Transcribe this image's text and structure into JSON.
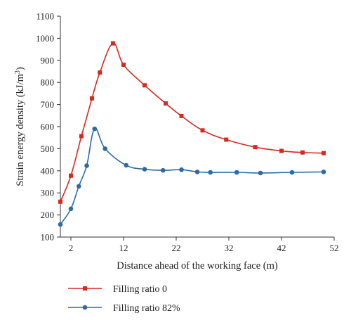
{
  "chart_data": {
    "type": "line",
    "xlabel": "Distance ahead of the working face (m)",
    "ylabel": "Strain energy density (kJ/m³)",
    "ylabel_parts": [
      "Strain energy density (kJ/m",
      "3",
      ")"
    ],
    "xlim": [
      0,
      52
    ],
    "ylim": [
      100,
      1100
    ],
    "xticks": [
      2,
      12,
      22,
      32,
      42,
      52
    ],
    "yticks": [
      100,
      200,
      300,
      400,
      500,
      600,
      700,
      800,
      900,
      1000,
      1100
    ],
    "grid": false,
    "legend_position": "bottom-left",
    "series": [
      {
        "name": "Filling ratio 0",
        "color": "#d42a20",
        "marker": "square",
        "x": [
          0,
          2,
          4,
          6,
          7.5,
          10,
          12,
          16,
          20,
          23,
          27,
          31.5,
          37,
          42,
          46,
          50
        ],
        "y": [
          260,
          378,
          557,
          728,
          845,
          977,
          880,
          787,
          705,
          648,
          583,
          541,
          507,
          490,
          483,
          480
        ]
      },
      {
        "name": "Filling ratio 82%",
        "color": "#2d6aa6",
        "marker": "circle",
        "x": [
          0,
          2,
          3.5,
          5,
          6.5,
          8.5,
          12.5,
          16,
          19.5,
          23,
          26,
          28.5,
          33.5,
          38,
          44,
          50
        ],
        "y": [
          157,
          228,
          330,
          423,
          590,
          500,
          425,
          407,
          402,
          405,
          395,
          393,
          393,
          390,
          393,
          395
        ]
      }
    ]
  }
}
